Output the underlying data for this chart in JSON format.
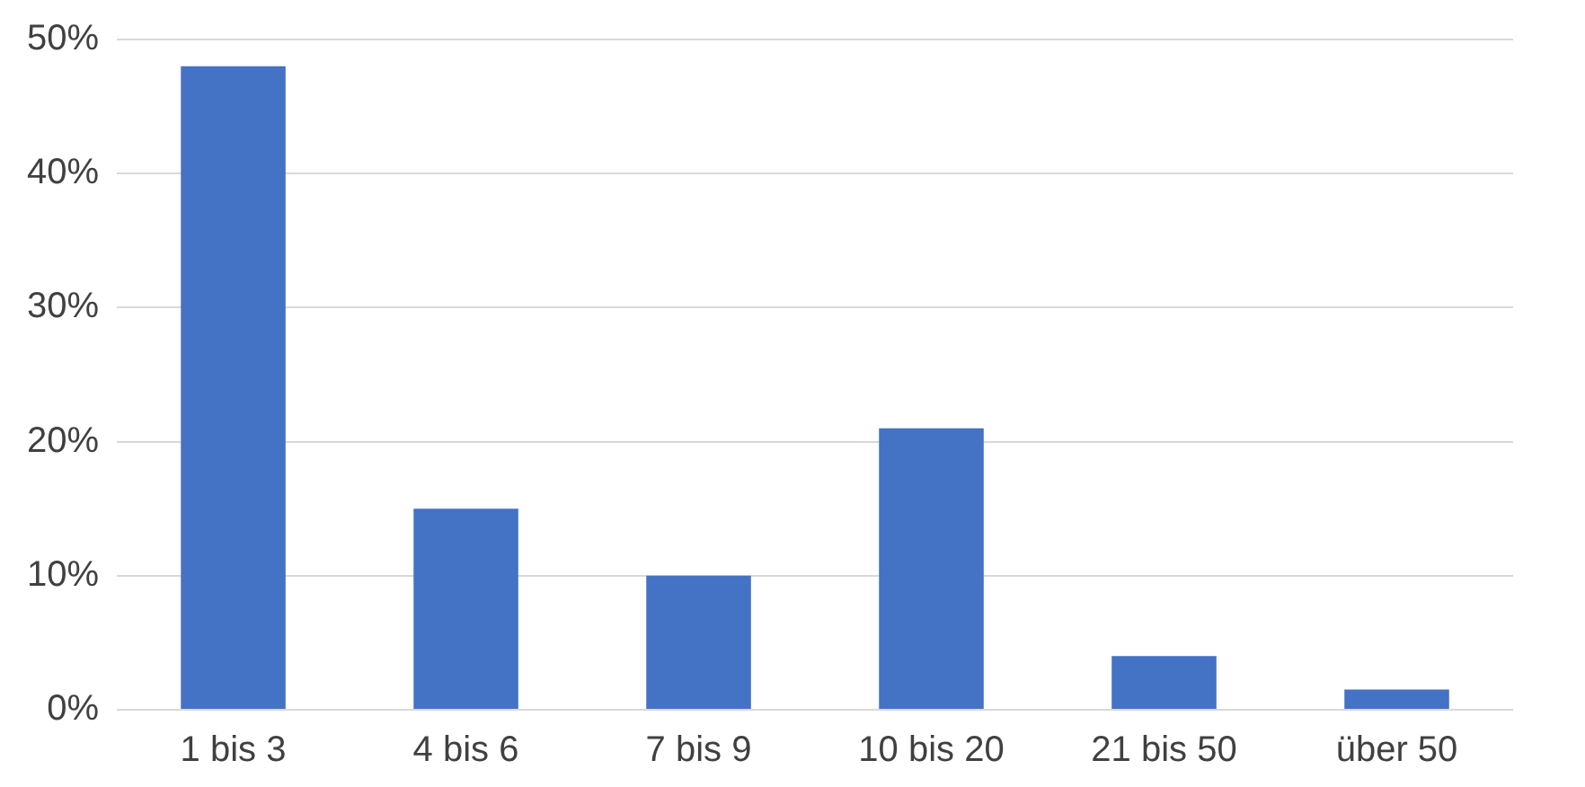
{
  "chart_data": {
    "type": "bar",
    "categories": [
      "1 bis 3",
      "4 bis 6",
      "7 bis 9",
      "10 bis 20",
      "21 bis 50",
      "über 50"
    ],
    "values": [
      48,
      15,
      10,
      21,
      4,
      1.5
    ],
    "color": "#4472c4",
    "ylim": [
      0,
      50
    ],
    "yticks": [
      {
        "value": 0,
        "label": "0%"
      },
      {
        "value": 10,
        "label": "10%"
      },
      {
        "value": 20,
        "label": "20%"
      },
      {
        "value": 30,
        "label": "30%"
      },
      {
        "value": 40,
        "label": "40%"
      },
      {
        "value": 50,
        "label": "50%"
      }
    ],
    "grid": "y",
    "legend": false
  }
}
